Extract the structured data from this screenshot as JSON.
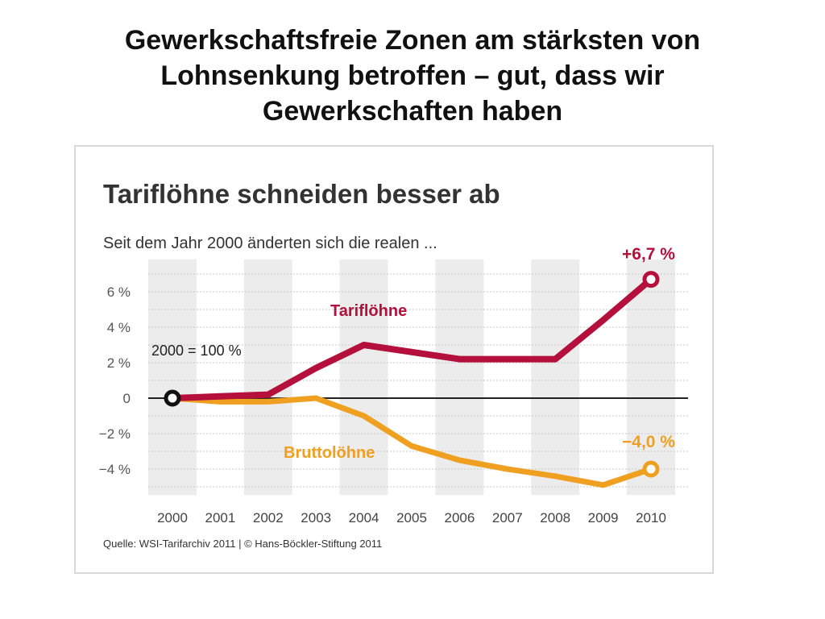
{
  "slide": {
    "title_lines": [
      "Gewerkschaftsfreie Zonen am stärksten von",
      "Lohnsenkung betroffen – gut, dass wir",
      "Gewerkschaften haben"
    ]
  },
  "chart_data": {
    "type": "line",
    "title": "Tariflöhne schneiden besser ab",
    "subtitle": "Seit dem Jahr 2000 änderten sich die realen ...",
    "baseline_note": "2000 = 100 %",
    "source": "Quelle: WSI-Tarifarchiv 2011 | © Hans-Böckler-Stiftung 2011",
    "x": [
      2000,
      2001,
      2002,
      2003,
      2004,
      2005,
      2006,
      2007,
      2008,
      2009,
      2010
    ],
    "x_labels": [
      "2000",
      "2001",
      "2002",
      "2003",
      "2004",
      "2005",
      "2006",
      "2007",
      "2008",
      "2009",
      "2010"
    ],
    "y_ticks": [
      6,
      4,
      2,
      0,
      -2,
      -4
    ],
    "y_tick_labels": [
      "6 %",
      "4 %",
      "2 %",
      "0",
      "−2 %",
      "−4 %"
    ],
    "ylim": [
      -5.2,
      7
    ],
    "series": [
      {
        "name": "Tariflöhne",
        "color": "#b5103c",
        "values": [
          0,
          0.1,
          0.2,
          1.7,
          3.0,
          2.6,
          2.2,
          2.2,
          2.2,
          4.4,
          6.7
        ],
        "end_label": "+6,7 %"
      },
      {
        "name": "Bruttolöhne",
        "color": "#f0a020",
        "values": [
          0,
          -0.2,
          -0.2,
          0.0,
          -1.0,
          -2.7,
          -3.5,
          -4.0,
          -4.4,
          -4.9,
          -4.0
        ],
        "end_label": "−4,0 %"
      }
    ],
    "colors": {
      "title": "#333333",
      "grid": "#c8c8c8",
      "shade": "#ececec",
      "axis": "#222222"
    }
  }
}
